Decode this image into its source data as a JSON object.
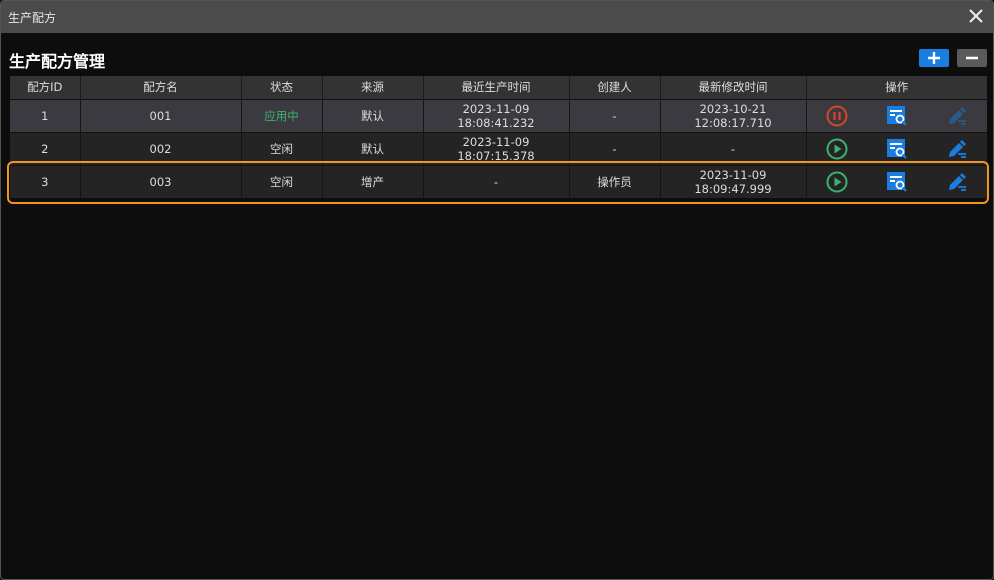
{
  "window": {
    "title": "生产配方"
  },
  "page": {
    "title": "生产配方管理"
  },
  "colors": {
    "accent": "#1a7ee0",
    "highlight": "#f0961e",
    "active_status": "#3bb273",
    "stop": "#d9452b"
  },
  "table": {
    "headers": [
      "配方ID",
      "配方名",
      "状态",
      "来源",
      "最近生产时间",
      "创建人",
      "最新修改时间",
      "操作"
    ],
    "rows": [
      {
        "id": "1",
        "name": "001",
        "status": "应用中",
        "source": "默认",
        "last_produced": "2023-11-09 18:08:41.232",
        "creator": "-",
        "modified": "2023-10-21 12:08:17.710",
        "run_action": "pause-icon",
        "edit_enabled": false
      },
      {
        "id": "2",
        "name": "002",
        "status": "空闲",
        "source": "默认",
        "last_produced": "2023-11-09 18:07:15.378",
        "creator": "-",
        "modified": "-",
        "run_action": "play-icon",
        "edit_enabled": true
      },
      {
        "id": "3",
        "name": "003",
        "status": "空闲",
        "source": "增产",
        "last_produced": "-",
        "creator": "操作员",
        "modified": "2023-11-09 18:09:47.999",
        "run_action": "play-icon",
        "edit_enabled": true,
        "selected": true
      }
    ]
  }
}
